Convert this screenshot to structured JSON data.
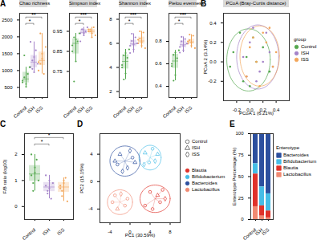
{
  "chart_data": [
    {
      "type": "box",
      "panel": "A",
      "title": "Chao richness",
      "categories": [
        "Control",
        "ISH",
        "ISS"
      ],
      "colors": [
        "#55a84f",
        "#a483c9",
        "#f2a65a"
      ],
      "values": [
        [
          650,
          800,
          520,
          900,
          1100,
          700,
          1450,
          600
        ],
        [
          1100,
          1300,
          950,
          1600,
          1200,
          1850,
          1050,
          1400
        ],
        [
          1000,
          1200,
          1500,
          900,
          1700,
          1250,
          2100,
          1350
        ]
      ],
      "ylim": [
        200,
        2700
      ],
      "yticks": [
        500,
        1000,
        1500,
        2000,
        2500
      ],
      "significance": [
        {
          "from": "Control",
          "to": "ISS",
          "label": "**"
        },
        {
          "from": "Control",
          "to": "ISH",
          "label": "*"
        }
      ]
    },
    {
      "type": "box",
      "title": "Simpson index",
      "categories": [
        "Control",
        "ISH",
        "ISS"
      ],
      "colors": [
        "#55a84f",
        "#a483c9",
        "#f2a65a"
      ],
      "values": [
        [
          0.88,
          0.92,
          0.8,
          0.9,
          0.94,
          0.85,
          0.7,
          0.91
        ],
        [
          0.94,
          0.96,
          0.93,
          0.95,
          0.97,
          0.9,
          0.96,
          0.94
        ],
        [
          0.95,
          0.96,
          0.94,
          0.97,
          0.93,
          0.96,
          0.95,
          0.92
        ]
      ],
      "ylim": [
        0.62,
        1.04
      ],
      "yticks": [
        0.75,
        0.85,
        0.95
      ],
      "significance": [
        {
          "from": "Control",
          "to": "ISS",
          "label": "***"
        },
        {
          "from": "Control",
          "to": "ISH",
          "label": "*"
        }
      ]
    },
    {
      "type": "box",
      "title": "Shannon index",
      "categories": [
        "Control",
        "ISH",
        "ISS"
      ],
      "colors": [
        "#55a84f",
        "#a483c9",
        "#f2a65a"
      ],
      "values": [
        [
          4.2,
          5.0,
          3.5,
          4.8,
          5.5,
          4.0,
          3.0,
          5.2
        ],
        [
          5.8,
          6.2,
          5.5,
          6.5,
          6.0,
          5.2,
          6.8,
          5.9
        ],
        [
          6.0,
          6.4,
          5.8,
          6.9,
          5.6,
          6.3,
          7.0,
          6.1
        ]
      ],
      "ylim": [
        1.5,
        8.5
      ],
      "yticks": [
        2,
        4,
        6,
        8
      ],
      "significance": [
        {
          "from": "Control",
          "to": "ISS",
          "label": "***"
        },
        {
          "from": "Control",
          "to": "ISH",
          "label": "*"
        }
      ]
    },
    {
      "type": "box",
      "title": "Pielou evenness",
      "categories": [
        "Control",
        "ISH",
        "ISS"
      ],
      "colors": [
        "#55a84f",
        "#a483c9",
        "#f2a65a"
      ],
      "values": [
        [
          0.6,
          0.68,
          0.5,
          0.65,
          0.72,
          0.58,
          0.45,
          0.7
        ],
        [
          0.75,
          0.8,
          0.72,
          0.82,
          0.78,
          0.7,
          0.84,
          0.76
        ],
        [
          0.78,
          0.81,
          0.76,
          0.85,
          0.74,
          0.8,
          0.86,
          0.79
        ]
      ],
      "ylim": [
        0.3,
        1.05
      ],
      "yticks": [
        0.4,
        0.6,
        0.8
      ],
      "significance": [
        {
          "from": "Control",
          "to": "ISS",
          "label": "***"
        },
        {
          "from": "Control",
          "to": "ISH",
          "label": "*"
        }
      ]
    },
    {
      "type": "scatter",
      "panel": "B",
      "title": "PCoA (Bray-Curtis distance)",
      "x_label": "PCoA 1 (6.21%)",
      "y_label": "PCoA 2 (3.14%)",
      "legend": "right",
      "legend_title": "group",
      "xlim": [
        -0.4,
        0.6
      ],
      "xticks": [
        -0.2,
        {
          "value": 0,
          "label": "0.0"
        },
        0.2,
        0.4
      ],
      "ylim": [
        -0.4,
        0.5
      ],
      "yticks": [
        -0.2,
        {
          "value": 0,
          "label": "0.0"
        },
        0.2,
        0.4
      ],
      "series": [
        {
          "name": "Control",
          "color": "#55a84f",
          "x": [
            -0.25,
            -0.1,
            0.05,
            -0.3,
            0.1,
            -0.15,
            0.0,
            0.2,
            -0.05,
            0.3
          ],
          "y": [
            0.1,
            -0.2,
            0.25,
            -0.05,
            0.0,
            0.3,
            -0.25,
            0.15,
            0.05,
            -0.1
          ],
          "ellipse": {
            "cx": -0.02,
            "cy": 0.02,
            "rx": 0.33,
            "ry": 0.32
          }
        },
        {
          "name": "ISH",
          "color": "#a483c9",
          "x": [
            0.0,
            0.15,
            -0.1,
            0.25,
            0.1,
            0.3,
            -0.05,
            0.2,
            0.05,
            0.35
          ],
          "y": [
            0.2,
            -0.1,
            0.05,
            0.3,
            -0.2,
            0.1,
            -0.15,
            0.0,
            0.35,
            -0.05
          ],
          "ellipse": {
            "cx": 0.12,
            "cy": 0.05,
            "rx": 0.32,
            "ry": 0.33
          }
        },
        {
          "name": "ISS",
          "color": "#f2a65a",
          "x": [
            0.1,
            0.25,
            -0.05,
            0.35,
            0.2,
            0.0,
            0.4,
            0.15,
            0.3,
            0.05
          ],
          "y": [
            0.0,
            0.2,
            -0.15,
            -0.05,
            0.3,
            0.15,
            0.1,
            -0.25,
            0.35,
            0.25
          ],
          "ellipse": {
            "cx": 0.15,
            "cy": 0.06,
            "rx": 0.3,
            "ry": 0.31
          }
        }
      ]
    },
    {
      "type": "box",
      "panel": "C",
      "y_label": "F/B ratio (log10)",
      "categories": [
        "Control",
        "ISH",
        "ISS"
      ],
      "colors": [
        "#55a84f",
        "#a483c9",
        "#f2a65a"
      ],
      "values": [
        [
          1.2,
          0.9,
          1.5,
          1.8,
          1.0,
          2.0,
          0.6,
          1.3
        ],
        [
          0.8,
          0.5,
          1.0,
          0.3,
          0.9,
          1.2,
          0.6,
          0.7
        ],
        [
          0.7,
          0.4,
          0.9,
          1.1,
          0.2,
          0.8,
          0.6,
          1.0
        ]
      ],
      "ylim": [
        -0.5,
        2.8
      ],
      "yticks": [
        0,
        1,
        2
      ],
      "significance": [
        {
          "from": "Control",
          "to": "ISS",
          "label": "*"
        },
        {
          "from": "Control",
          "to": "ISH",
          "label": "*"
        }
      ]
    },
    {
      "type": "scatter",
      "panel": "D",
      "x_label": "PC1 (30.59%)",
      "y_label": "PC2 (15.15%)",
      "legend": "right",
      "xlim": [
        -6,
        10
      ],
      "xticks": [
        -4,
        0,
        4,
        8
      ],
      "ylim": [
        -6,
        7
      ],
      "yticks": [
        -4,
        0,
        4
      ],
      "groups": [
        {
          "name": "Control",
          "marker": "circle"
        },
        {
          "name": "ISH",
          "marker": "triangle"
        },
        {
          "name": "ISS",
          "marker": "diamond"
        }
      ],
      "series": [
        {
          "name": "Blautia",
          "color": "#e0322a",
          "x": [
            4,
            6,
            5.5,
            3,
            7,
            4.5,
            6.5
          ],
          "y": [
            -1.5,
            -3,
            -2,
            -3.5,
            -2.5,
            -4,
            -1.2
          ],
          "groups": [
            "Control",
            "Control",
            "ISH",
            "Control",
            "ISS",
            "Control",
            "Control"
          ],
          "ellipse": {
            "cx": 5,
            "cy": -2.5,
            "rx": 3,
            "ry": 2
          }
        },
        {
          "name": "Bifidobacterium",
          "color": "#46bde6",
          "x": [
            3,
            5,
            4.5,
            2.8,
            5.5,
            3.8
          ],
          "y": [
            4.2,
            3,
            4.8,
            2.5,
            4,
            2.8
          ],
          "groups": [
            "ISH",
            "ISS",
            "Control",
            "ISS",
            "ISH",
            "Control"
          ],
          "ellipse": {
            "cx": 4,
            "cy": 3.5,
            "rx": 2.2,
            "ry": 1.8
          }
        },
        {
          "name": "Bacteroides",
          "color": "#2c4f9e",
          "x": [
            -2,
            -0.5,
            0.5,
            -3,
            -1.5,
            0,
            -2.5,
            1
          ],
          "y": [
            4,
            2,
            3.5,
            3,
            1.5,
            4.5,
            2.5,
            2.8
          ],
          "groups": [
            "ISH",
            "ISS",
            "Control",
            "ISH",
            "ISS",
            "ISS",
            "Control",
            "ISH"
          ],
          "ellipse": {
            "cx": -1,
            "cy": 3,
            "rx": 3,
            "ry": 2.2
          }
        },
        {
          "name": "Lactobacillus",
          "color": "#f08a72",
          "x": [
            -3,
            -1,
            -2.5,
            -0.5,
            -3.5,
            -1.8
          ],
          "y": [
            -2,
            -3.5,
            -4,
            -2.5,
            -3,
            -1.8
          ],
          "groups": [
            "Control",
            "Control",
            "ISH",
            "Control",
            "Control",
            "ISS"
          ],
          "ellipse": {
            "cx": -2,
            "cy": -3,
            "rx": 2.5,
            "ry": 1.8
          }
        }
      ]
    },
    {
      "type": "bar",
      "panel": "E",
      "stacked": true,
      "y_label": "Enterotype Percentage (%)",
      "legend": "right",
      "legend_title": "Enterotype",
      "categories": [
        "Control",
        "ISH",
        "ISS"
      ],
      "ylim": [
        0,
        100
      ],
      "yticks": [
        0,
        25,
        50,
        75,
        100
      ],
      "series": [
        {
          "name": "Bacteroides",
          "color": "#2c4f9e",
          "values": [
            35,
            62,
            70
          ]
        },
        {
          "name": "Bifidobacterium",
          "color": "#46bde6",
          "values": [
            12,
            22,
            20
          ]
        },
        {
          "name": "Blautia",
          "color": "#e0322a",
          "values": [
            38,
            12,
            8
          ]
        },
        {
          "name": "Lactobacillus",
          "color": "#f08a72",
          "values": [
            15,
            4,
            2
          ]
        }
      ]
    }
  ]
}
